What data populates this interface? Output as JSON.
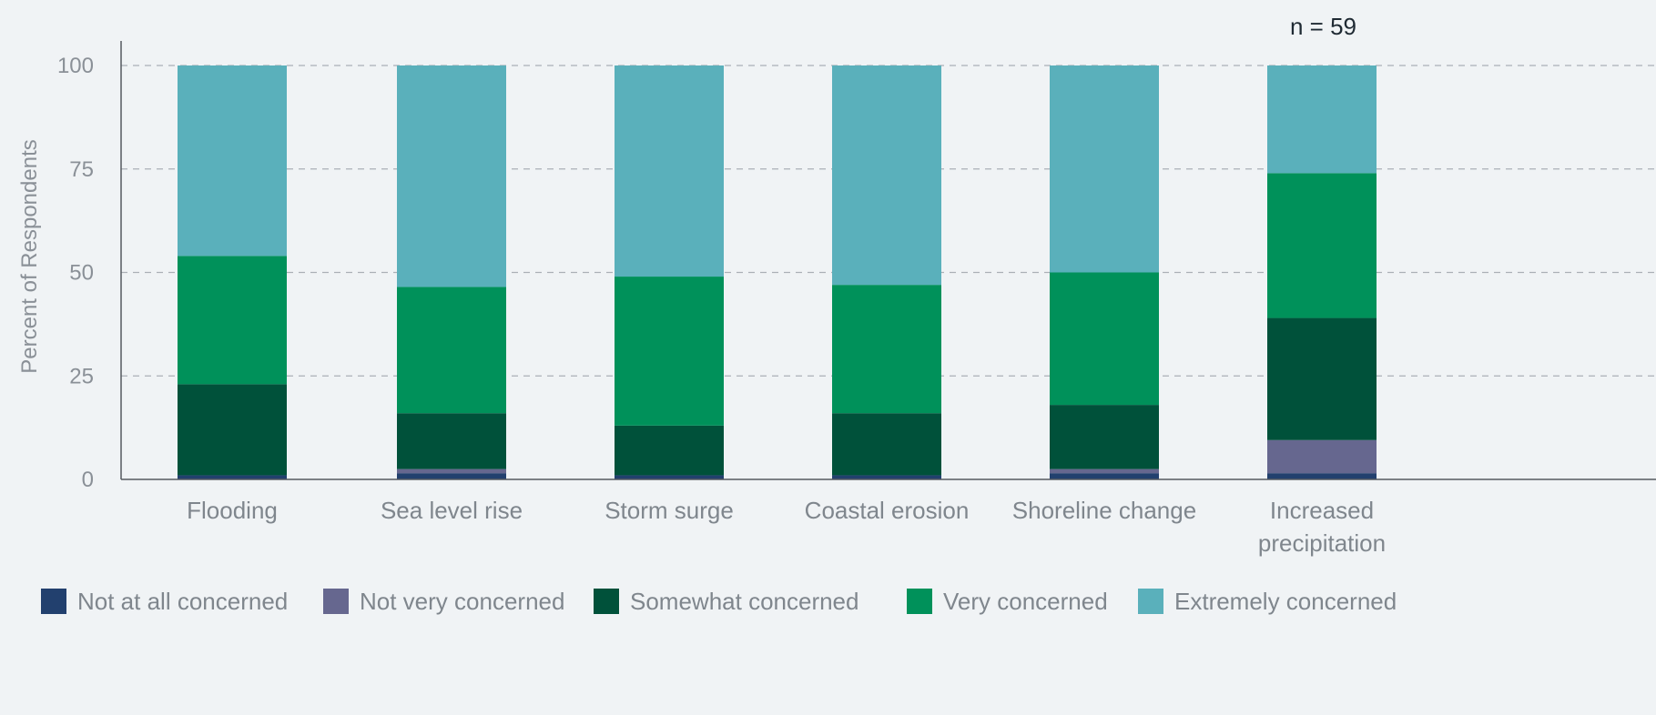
{
  "chart_data": {
    "type": "bar",
    "stacked": true,
    "note": "n = 59",
    "ylabel": "Percent of Respondents",
    "xlabel": "",
    "ylim": [
      0,
      100
    ],
    "yticks": [
      0,
      25,
      50,
      75,
      100
    ],
    "grid": "horizontal dashed",
    "legend_position": "bottom",
    "categories": [
      "Flooding",
      "Sea level rise",
      "Storm surge",
      "Coastal erosion",
      "Shoreline change",
      "Increased precipitation"
    ],
    "series": [
      {
        "name": "Not at all concerned",
        "color": "#22406e",
        "values": [
          1,
          1.5,
          1,
          1,
          1.5,
          1.5
        ]
      },
      {
        "name": "Not very concerned",
        "color": "#66678f",
        "values": [
          0,
          1,
          0,
          0,
          1,
          8
        ]
      },
      {
        "name": "Somewhat concerned",
        "color": "#00513a",
        "values": [
          22,
          13.5,
          12,
          15,
          15.5,
          29.5
        ]
      },
      {
        "name": "Very concerned",
        "color": "#00915a",
        "values": [
          31,
          30.5,
          36,
          31,
          32,
          35
        ]
      },
      {
        "name": "Extremely concerned",
        "color": "#5ab0bb",
        "values": [
          46,
          53.5,
          51,
          53,
          50,
          26
        ]
      }
    ]
  }
}
